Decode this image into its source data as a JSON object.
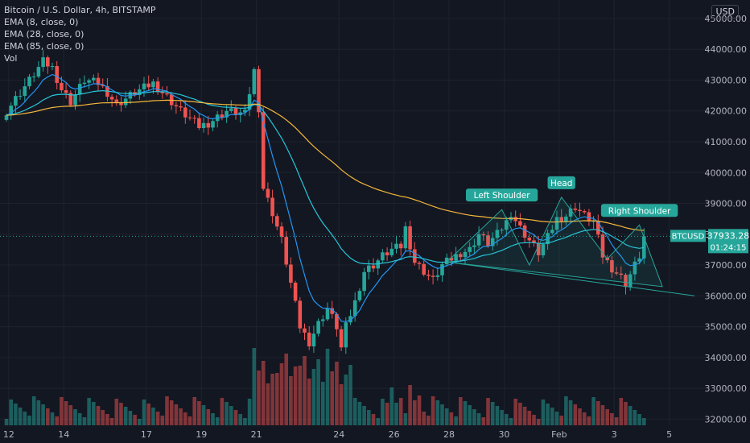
{
  "legend": {
    "title": "Bitcoin / U.S. Dollar, 4h, BITSTAMP",
    "ema1": "EMA (8, close, 0)",
    "ema2": "EMA (28, close, 0)",
    "ema3": "EMA (85, close, 0)",
    "vol": "Vol"
  },
  "currency": "USD",
  "price_tag": {
    "symbol": "BTCUSD",
    "price": "37933.28",
    "countdown": "01:24:15"
  },
  "colors": {
    "background": "#131722",
    "up": "#26a69a",
    "down": "#ef5350",
    "ema_fast": "#2196f3",
    "ema_mid": "#26c6da",
    "ema_slow": "#f5b73b",
    "pattern": "#26a69a",
    "grid": "#1e222d",
    "axis_text": "#b2b5be"
  },
  "chart_data": {
    "type": "candlestick",
    "symbol": "BTCUSD",
    "interval": "4h",
    "ylim": [
      31800,
      45600
    ],
    "y_ticks": [
      "45000.00",
      "44000.00",
      "43000.00",
      "42000.00",
      "41000.00",
      "40000.00",
      "39000.00",
      "38000.00",
      "37000.00",
      "36000.00",
      "35000.00",
      "34000.00",
      "33000.00",
      "32000.00"
    ],
    "x_ticks": [
      {
        "label": "12",
        "x": 0.5
      },
      {
        "label": "14",
        "x": 12.5
      },
      {
        "label": "17",
        "x": 30.5
      },
      {
        "label": "19",
        "x": 42.5
      },
      {
        "label": "21",
        "x": 54.5
      },
      {
        "label": "24",
        "x": 72.5
      },
      {
        "label": "26",
        "x": 84.5
      },
      {
        "label": "28",
        "x": 96.5
      },
      {
        "label": "30",
        "x": 108.5
      },
      {
        "label": "Feb",
        "x": 120.5
      },
      {
        "label": "3",
        "x": 132.5
      },
      {
        "label": "5",
        "x": 144.5
      }
    ],
    "anchors": [
      [
        0,
        42000
      ],
      [
        4,
        42800
      ],
      [
        8,
        43600
      ],
      [
        10,
        43400
      ],
      [
        12,
        42700
      ],
      [
        14,
        42300
      ],
      [
        17,
        43000
      ],
      [
        20,
        42900
      ],
      [
        22,
        42600
      ],
      [
        24,
        42200
      ],
      [
        28,
        42600
      ],
      [
        32,
        42900
      ],
      [
        34,
        42600
      ],
      [
        38,
        42000
      ],
      [
        42,
        41500
      ],
      [
        44,
        41600
      ],
      [
        48,
        42000
      ],
      [
        52,
        41900
      ],
      [
        54,
        43300
      ],
      [
        55,
        42100
      ],
      [
        56,
        39500
      ],
      [
        58,
        38700
      ],
      [
        60,
        37800
      ],
      [
        62,
        36400
      ],
      [
        64,
        35000
      ],
      [
        66,
        34500
      ],
      [
        68,
        35100
      ],
      [
        70,
        35600
      ],
      [
        72,
        35000
      ],
      [
        73,
        34300
      ],
      [
        74,
        35000
      ],
      [
        76,
        35800
      ],
      [
        78,
        36800
      ],
      [
        80,
        37000
      ],
      [
        82,
        37300
      ],
      [
        84,
        37500
      ],
      [
        86,
        37600
      ],
      [
        87,
        38200
      ],
      [
        89,
        37100
      ],
      [
        91,
        36800
      ],
      [
        93,
        36500
      ],
      [
        95,
        37000
      ],
      [
        97,
        37200
      ],
      [
        99,
        37400
      ],
      [
        101,
        37500
      ],
      [
        103,
        38000
      ],
      [
        105,
        37700
      ],
      [
        107,
        38000
      ],
      [
        109,
        38400
      ],
      [
        110,
        38700
      ],
      [
        112,
        38200
      ],
      [
        114,
        37800
      ],
      [
        116,
        37400
      ],
      [
        118,
        37900
      ],
      [
        120,
        38500
      ],
      [
        122,
        38600
      ],
      [
        124,
        38900
      ],
      [
        126,
        38600
      ],
      [
        128,
        38400
      ],
      [
        130,
        37300
      ],
      [
        132,
        36900
      ],
      [
        134,
        36600
      ],
      [
        135,
        36400
      ],
      [
        136,
        36700
      ],
      [
        138,
        37300
      ],
      [
        139,
        37930
      ]
    ],
    "series": [
      {
        "name": "EMA (8, close, 0)",
        "period": 8
      },
      {
        "name": "EMA (28, close, 0)",
        "period": 28
      },
      {
        "name": "EMA (85, close, 0)",
        "period": 85
      }
    ],
    "annotations": [
      {
        "label": "Left Shoulder",
        "x": 108,
        "y": 38800
      },
      {
        "label": "Head",
        "x": 121,
        "y": 39200
      },
      {
        "label": "Right Shoulder",
        "x": 138,
        "y": 38300
      }
    ],
    "neckline": [
      [
        96,
        37100
      ],
      [
        150,
        36000
      ]
    ],
    "current_price": 37933.28
  }
}
